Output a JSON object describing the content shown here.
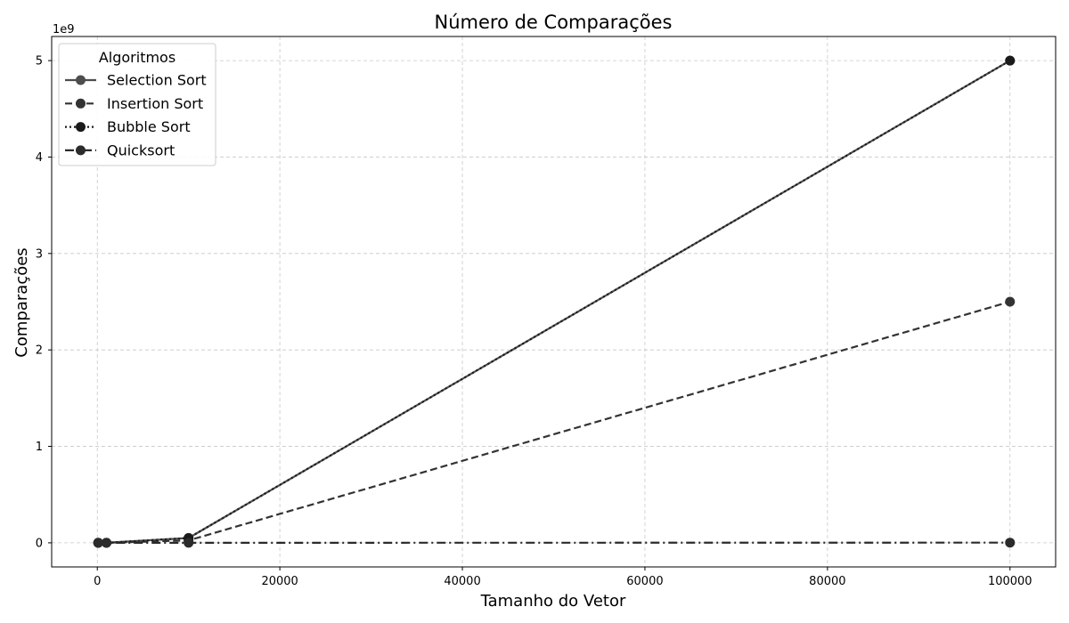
{
  "chart_data": {
    "type": "line",
    "title": "Número de Comparações",
    "xlabel": "Tamanho do Vetor",
    "ylabel": "Comparações",
    "y_offset_label": "1e9",
    "xlim": [
      -5000,
      105000
    ],
    "ylim": [
      -0.25,
      5.25
    ],
    "y_unit_multiplier": 1000000000,
    "x_ticks": [
      0,
      20000,
      40000,
      60000,
      80000,
      100000
    ],
    "x_tick_labels": [
      "0",
      "20000",
      "40000",
      "60000",
      "80000",
      "100000"
    ],
    "y_ticks": [
      0,
      1,
      2,
      3,
      4,
      5
    ],
    "y_tick_labels": [
      "0",
      "1",
      "2",
      "3",
      "4",
      "5"
    ],
    "grid": true,
    "legend": {
      "title": "Algoritmos",
      "placement": "top-left"
    },
    "x": [
      100,
      1000,
      10000,
      100000
    ],
    "series": [
      {
        "name": "Selection Sort",
        "style": "solid",
        "color": "#4d4d4d",
        "values": [
          4.95e-06,
          0.0004995,
          0.049995,
          4.99995
        ]
      },
      {
        "name": "Insertion Sort",
        "style": "dashed",
        "color": "#333333",
        "values": [
          2.5e-06,
          0.00025,
          0.025,
          2.5
        ]
      },
      {
        "name": "Bubble Sort",
        "style": "dotted",
        "color": "#1a1a1a",
        "values": [
          4.95e-06,
          0.0004995,
          0.049995,
          4.99995
        ]
      },
      {
        "name": "Quicksort",
        "style": "dashdot",
        "color": "#2b2b2b",
        "values": [
          7e-07,
          1.1e-05,
          0.00016,
          0.002
        ]
      }
    ]
  }
}
